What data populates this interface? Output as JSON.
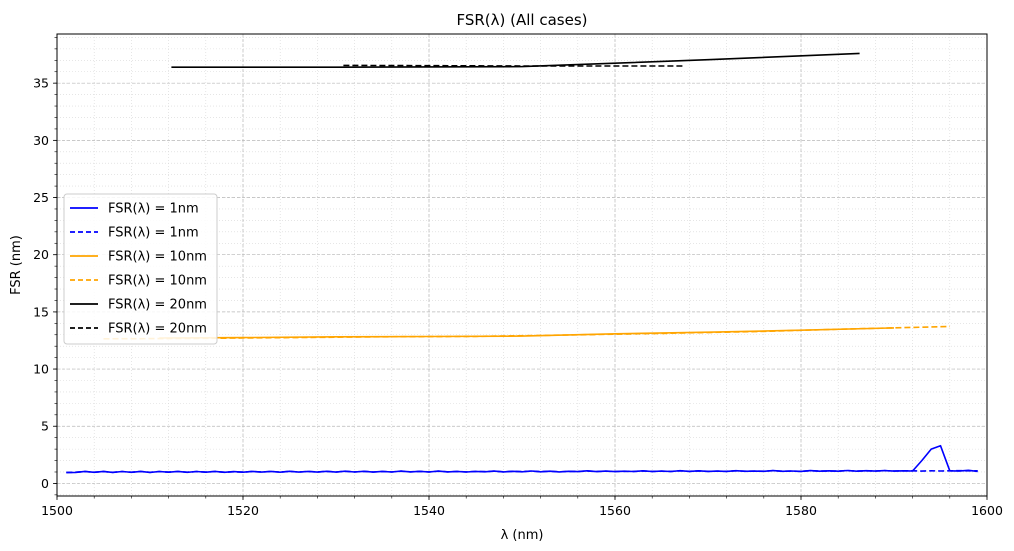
{
  "chart_data": {
    "type": "line",
    "title": "FSR(λ) (All cases)",
    "xlabel": "λ (nm)",
    "ylabel": "FSR (nm)",
    "xlim": [
      1500,
      1600
    ],
    "ylim": [
      -1.1,
      39.3
    ],
    "xticks": [
      1500,
      1520,
      1540,
      1560,
      1580,
      1600
    ],
    "yticks": [
      0,
      5,
      10,
      15,
      20,
      25,
      30,
      35
    ],
    "xtick_labels": [
      "1500",
      "1520",
      "1540",
      "1560",
      "1580",
      "1600"
    ],
    "ytick_labels": [
      "0",
      "5",
      "10",
      "15",
      "20",
      "25",
      "30",
      "35"
    ],
    "grid": "major and minor, dotted",
    "legend_position": "center-left",
    "series": [
      {
        "name": "FSR(λ) = 1nm",
        "color": "#0000ff",
        "style": "solid",
        "x": [
          1501,
          1502,
          1503,
          1504,
          1505,
          1506,
          1507,
          1508,
          1509,
          1510,
          1511,
          1512,
          1513,
          1514,
          1515,
          1516,
          1517,
          1518,
          1519,
          1520,
          1521,
          1522,
          1523,
          1524,
          1525,
          1526,
          1527,
          1528,
          1529,
          1530,
          1531,
          1532,
          1533,
          1534,
          1535,
          1536,
          1537,
          1538,
          1539,
          1540,
          1541,
          1542,
          1543,
          1544,
          1545,
          1546,
          1547,
          1548,
          1549,
          1550,
          1551,
          1552,
          1553,
          1554,
          1555,
          1556,
          1557,
          1558,
          1559,
          1560,
          1561,
          1562,
          1563,
          1564,
          1565,
          1566,
          1567,
          1568,
          1569,
          1570,
          1571,
          1572,
          1573,
          1574,
          1575,
          1576,
          1577,
          1578,
          1579,
          1580,
          1581,
          1582,
          1583,
          1584,
          1585,
          1586,
          1587,
          1588,
          1589,
          1590,
          1591,
          1592,
          1593,
          1594,
          1595,
          1596,
          1597,
          1598,
          1599
        ],
        "y": [
          0.95,
          0.96,
          1.05,
          0.97,
          1.05,
          0.96,
          1.04,
          0.97,
          1.05,
          0.96,
          1.04,
          0.98,
          1.05,
          0.97,
          1.04,
          0.98,
          1.05,
          0.97,
          1.03,
          0.98,
          1.05,
          0.99,
          1.05,
          0.98,
          1.06,
          0.99,
          1.05,
          0.99,
          1.06,
          0.99,
          1.07,
          1.0,
          1.06,
          0.99,
          1.05,
          1.0,
          1.08,
          1.01,
          1.06,
          1.0,
          1.08,
          1.01,
          1.05,
          1.0,
          1.05,
          1.02,
          1.08,
          1.01,
          1.06,
          1.02,
          1.09,
          1.02,
          1.07,
          1.01,
          1.06,
          1.03,
          1.1,
          1.03,
          1.08,
          1.03,
          1.07,
          1.04,
          1.1,
          1.04,
          1.08,
          1.04,
          1.11,
          1.05,
          1.1,
          1.05,
          1.08,
          1.05,
          1.11,
          1.06,
          1.08,
          1.06,
          1.12,
          1.06,
          1.09,
          1.05,
          1.12,
          1.07,
          1.1,
          1.07,
          1.13,
          1.07,
          1.11,
          1.08,
          1.12,
          1.08,
          1.1,
          1.09,
          2.0,
          3.0,
          3.3,
          1.1,
          1.08,
          1.15,
          1.05
        ]
      },
      {
        "name": "FSR(λ) = 1nm",
        "color": "#0000ff",
        "style": "dashed",
        "x": [
          1501,
          1502,
          1503,
          1504,
          1505,
          1506,
          1507,
          1508,
          1509,
          1510,
          1511,
          1512,
          1513,
          1514,
          1515,
          1516,
          1517,
          1518,
          1519,
          1520,
          1521,
          1522,
          1523,
          1524,
          1525,
          1526,
          1527,
          1528,
          1529,
          1530,
          1531,
          1532,
          1533,
          1534,
          1535,
          1536,
          1537,
          1538,
          1539,
          1540,
          1541,
          1542,
          1543,
          1544,
          1545,
          1546,
          1547,
          1548,
          1549,
          1550,
          1551,
          1552,
          1553,
          1554,
          1555,
          1556,
          1557,
          1558,
          1559,
          1560,
          1561,
          1562,
          1563,
          1564,
          1565,
          1566,
          1567,
          1568,
          1569,
          1570,
          1571,
          1572,
          1573,
          1574,
          1575,
          1576,
          1577,
          1578,
          1579,
          1580,
          1581,
          1582,
          1583,
          1584,
          1585,
          1586,
          1587,
          1588,
          1589,
          1590,
          1591,
          1592,
          1593,
          1594,
          1595,
          1596,
          1597,
          1598,
          1599
        ],
        "y": [
          0.96,
          0.98,
          1.03,
          0.98,
          1.03,
          0.97,
          1.03,
          0.98,
          1.04,
          0.97,
          1.03,
          0.99,
          1.04,
          0.98,
          1.03,
          0.99,
          1.04,
          0.98,
          1.02,
          0.99,
          1.04,
          1.0,
          1.04,
          0.99,
          1.05,
          1.0,
          1.04,
          1.0,
          1.05,
          1.0,
          1.06,
          1.01,
          1.05,
          1.0,
          1.04,
          1.01,
          1.07,
          1.02,
          1.05,
          1.01,
          1.07,
          1.02,
          1.04,
          1.01,
          1.04,
          1.03,
          1.07,
          1.02,
          1.05,
          1.03,
          1.08,
          1.03,
          1.06,
          1.02,
          1.05,
          1.04,
          1.09,
          1.04,
          1.07,
          1.04,
          1.06,
          1.05,
          1.09,
          1.05,
          1.07,
          1.05,
          1.1,
          1.06,
          1.09,
          1.06,
          1.07,
          1.06,
          1.1,
          1.07,
          1.07,
          1.07,
          1.11,
          1.07,
          1.08,
          1.06,
          1.11,
          1.08,
          1.09,
          1.08,
          1.12,
          1.08,
          1.1,
          1.09,
          1.11,
          1.09,
          1.1,
          1.1,
          1.08,
          1.1,
          1.09,
          1.1,
          1.11,
          1.1,
          1.1
        ]
      },
      {
        "name": "FSR(λ) = 10nm",
        "color": "#ffa500",
        "style": "solid",
        "x": [
          1511,
          1520,
          1530,
          1540,
          1550,
          1560,
          1570,
          1580,
          1590
        ],
        "y": [
          12.72,
          12.75,
          12.82,
          12.85,
          12.88,
          13.08,
          13.22,
          13.4,
          13.6
        ]
      },
      {
        "name": "FSR(λ) = 10nm",
        "color": "#ffa500",
        "style": "dashed",
        "x": [
          1505,
          1515,
          1525,
          1535,
          1545,
          1555,
          1565,
          1575,
          1585,
          1596
        ],
        "y": [
          12.65,
          12.68,
          12.75,
          12.82,
          12.86,
          12.98,
          13.12,
          13.28,
          13.5,
          13.72
        ]
      },
      {
        "name": "FSR(λ) = 20nm",
        "color": "#000000",
        "style": "solid",
        "x": [
          1512.3,
          1530,
          1550,
          1560,
          1570,
          1586.3
        ],
        "y": [
          36.4,
          36.4,
          36.45,
          36.75,
          37.05,
          37.6
        ]
      },
      {
        "name": "FSR(λ) = 20nm",
        "color": "#000000",
        "style": "dashed",
        "x": [
          1530.8,
          1550,
          1567.5
        ],
        "y": [
          36.55,
          36.5,
          36.5
        ]
      }
    ]
  }
}
